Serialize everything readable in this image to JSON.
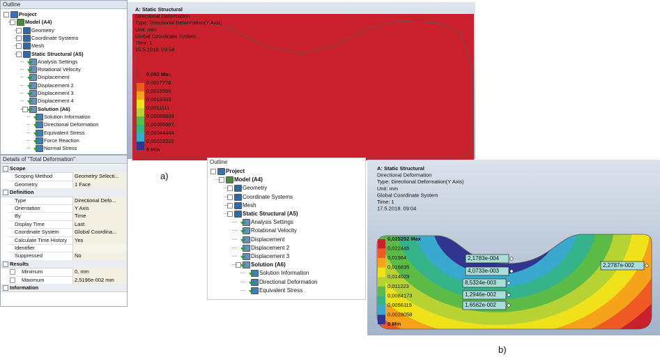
{
  "outline_1": {
    "title": "Outline",
    "tree": [
      {
        "label": "Project",
        "children": [
          {
            "label": "Model (A4)",
            "children": [
              {
                "label": "Geometry",
                "collapsed": true
              },
              {
                "label": "Coordinate Systems",
                "collapsed": true
              },
              {
                "label": "Mesh",
                "collapsed": true
              },
              {
                "label": "Static Structural (A5)",
                "children": [
                  {
                    "label": "Analysis Settings"
                  },
                  {
                    "label": "Rotational Velocity"
                  },
                  {
                    "label": "Displacement"
                  },
                  {
                    "label": "Displacement 2"
                  },
                  {
                    "label": "Displacement 3"
                  },
                  {
                    "label": "Displacement 4"
                  },
                  {
                    "label": "Solution (A6)",
                    "children": [
                      {
                        "label": "Solution Information"
                      },
                      {
                        "label": "Directional Deformation"
                      },
                      {
                        "label": "Equivalent Stress"
                      },
                      {
                        "label": "Force Reaction"
                      },
                      {
                        "label": "Normal Stress"
                      }
                    ]
                  }
                ]
              }
            ]
          }
        ]
      }
    ]
  },
  "details": {
    "title": "Details of \"Total Deformation\"",
    "sections": [
      {
        "name": "Scope",
        "rows": [
          [
            "Scoping Method",
            "Geometry Selecti..."
          ],
          [
            "Geometry",
            "1 Face"
          ]
        ]
      },
      {
        "name": "Definition",
        "rows": [
          [
            "Type",
            "Directional Defo..."
          ],
          [
            "Orientation",
            "Y Axis"
          ],
          [
            "By",
            "Time"
          ],
          [
            "Display Time",
            "Last"
          ],
          [
            "Coordinate System",
            "Global Coordina..."
          ],
          [
            "Calculate Time History",
            "Yes"
          ],
          [
            "Identifier"
          ],
          [
            "Suppressed",
            "No"
          ]
        ]
      },
      {
        "name": "Results",
        "rows": [
          [
            "Minimum",
            "0, mm"
          ],
          [
            "Maximum",
            "2,5196e-002 mm"
          ]
        ]
      },
      {
        "name": "Information",
        "rows": []
      }
    ]
  },
  "viewport_a": {
    "header": [
      "A: Static Structural",
      "Directional Deformation",
      "Type: Directional Deformation(Y Axis)",
      "Unit: mm",
      "Global Coordinate System",
      "Time: 1",
      "15.5.2018. 09:54"
    ],
    "legend_labels": [
      "0,002 Max",
      "0,0017778",
      "0,0015556",
      "0,0013333",
      "0,0011111",
      "0,00088889",
      "0,00066667",
      "0,00044444",
      "0,00022222",
      "0 Min"
    ],
    "legend_colors": [
      "#c9202c",
      "#ef5a24",
      "#f7a21b",
      "#efe11a",
      "#b7d233",
      "#5cba47",
      "#35b38a",
      "#3aa9d0",
      "#31358f"
    ]
  },
  "label_a": "a)",
  "outline_2": {
    "title": "Outline",
    "tree": [
      {
        "label": "Project",
        "children": [
          {
            "label": "Model (A4)",
            "children": [
              {
                "label": "Geometry",
                "collapsed": true
              },
              {
                "label": "Coordinate Systems",
                "collapsed": true
              },
              {
                "label": "Mesh",
                "collapsed": true
              },
              {
                "label": "Static Structural (A5)",
                "children": [
                  {
                    "label": "Analysis Settings"
                  },
                  {
                    "label": "Rotational Velocity"
                  },
                  {
                    "label": "Displacement"
                  },
                  {
                    "label": "Displacement 2"
                  },
                  {
                    "label": "Displacement 3"
                  },
                  {
                    "label": "Solution (A6)",
                    "children": [
                      {
                        "label": "Solution Information"
                      },
                      {
                        "label": "Directional Deformation"
                      },
                      {
                        "label": "Equivalent Stress"
                      }
                    ]
                  }
                ]
              }
            ]
          }
        ]
      }
    ]
  },
  "viewport_b": {
    "header": [
      "A: Static Structural",
      "Directional Deformation",
      "Type: Directional Deformation(Y Axis)",
      "Unit: mm",
      "Global Coordinate System",
      "Time: 1",
      "17.5.2018. 09:04"
    ],
    "legend_labels": [
      "0,025252 Max",
      "0,022446",
      "0,01964",
      "0,016835",
      "0,014029",
      "0,011223",
      "0,0084173",
      "0,0056115",
      "0,0028058",
      "0 Min"
    ],
    "legend_colors": [
      "#c9202c",
      "#ef5a24",
      "#f7a21b",
      "#efe11a",
      "#b7d233",
      "#5cba47",
      "#35b38a",
      "#3aa9d0",
      "#31358f"
    ],
    "probes": [
      "2,1783e-004",
      "4,0733e-003",
      "8,5324e-003",
      "1,2946e-002",
      "1,6562e-002",
      "2,2787e-002"
    ]
  },
  "label_b": "b)"
}
